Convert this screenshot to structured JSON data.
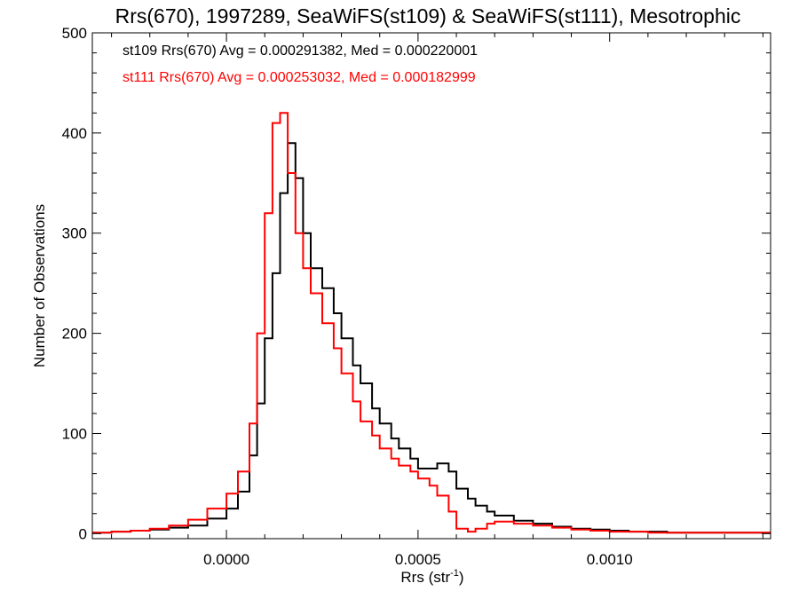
{
  "chart_data": {
    "type": "line",
    "step": true,
    "title": "Rrs(670), 1997289, SeaWiFS(st109) & SeaWiFS(st111), Mesotrophic",
    "xlabel": "Rrs (str",
    "xlabel_sup": "-1",
    "xlabel_close": ")",
    "ylabel": "Number of Observations",
    "xlim": [
      -0.00035,
      0.00142
    ],
    "ylim": [
      -5,
      500
    ],
    "xticks": [
      0.0,
      0.0005,
      0.001
    ],
    "xtick_labels": [
      "0.0000",
      "0.0005",
      "0.0010"
    ],
    "yticks": [
      0,
      100,
      200,
      300,
      400,
      500
    ],
    "ytick_labels": [
      "0",
      "100",
      "200",
      "300",
      "400",
      "500"
    ],
    "x": [
      -0.00035,
      -0.0003,
      -0.00025,
      -0.0002,
      -0.00015,
      -0.0001,
      -5e-05,
      0.0,
      3e-05,
      6e-05,
      8e-05,
      0.0001,
      0.00012,
      0.00014,
      0.00016,
      0.00018,
      0.0002,
      0.00022,
      0.00025,
      0.00028,
      0.0003,
      0.00033,
      0.00035,
      0.00038,
      0.0004,
      0.00043,
      0.00045,
      0.00048,
      0.0005,
      0.00053,
      0.00055,
      0.00058,
      0.0006,
      0.00063,
      0.00065,
      0.00068,
      0.0007,
      0.00075,
      0.0008,
      0.00085,
      0.0009,
      0.00095,
      0.001,
      0.00105,
      0.0011,
      0.00115,
      0.0012,
      0.00125,
      0.0013,
      0.00135,
      0.00142
    ],
    "series": [
      {
        "name": "st109",
        "color": "#000000",
        "values": [
          1,
          2,
          3,
          4,
          6,
          8,
          15,
          25,
          42,
          78,
          130,
          195,
          260,
          340,
          390,
          355,
          300,
          265,
          245,
          220,
          195,
          168,
          150,
          125,
          110,
          95,
          85,
          75,
          65,
          65,
          70,
          62,
          45,
          35,
          28,
          22,
          18,
          13,
          10,
          7,
          5,
          4,
          3,
          2,
          2,
          1,
          1,
          1,
          1,
          1,
          1
        ]
      },
      {
        "name": "st111",
        "color": "#ff0000",
        "values": [
          1,
          2,
          3,
          5,
          8,
          14,
          25,
          40,
          62,
          110,
          200,
          320,
          410,
          420,
          360,
          300,
          265,
          240,
          210,
          185,
          160,
          132,
          112,
          98,
          85,
          75,
          68,
          62,
          55,
          48,
          38,
          22,
          5,
          2,
          5,
          10,
          12,
          10,
          8,
          6,
          4,
          3,
          2,
          2,
          1,
          1,
          1,
          1,
          1,
          1,
          1
        ]
      }
    ],
    "legend": [
      {
        "label": "st109 Rrs(670) Avg = 0.000291382, Med = 0.000220001",
        "color": "#000000"
      },
      {
        "label": "st111 Rrs(670) Avg = 0.000253032, Med = 0.000182999",
        "color": "#ff0000"
      }
    ],
    "legend_position": "top-left",
    "grid": false
  }
}
